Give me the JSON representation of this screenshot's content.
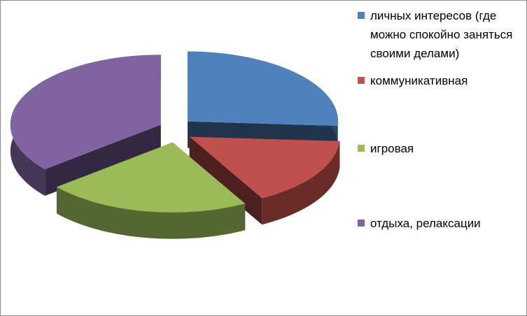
{
  "chart_data": {
    "type": "pie3d",
    "series": [
      {
        "name": "личных интересов  (где можно спокойно заняться своими делами)",
        "color": "#4f81bd",
        "value": 26
      },
      {
        "name": "коммуникативная",
        "color": "#c0504d",
        "value": 16
      },
      {
        "name": "игровая",
        "color": "#9bbb59",
        "value": 22
      },
      {
        "name": "отдыха, релаксации",
        "color": "#8064a2",
        "value": 36
      }
    ],
    "legend": "right"
  }
}
